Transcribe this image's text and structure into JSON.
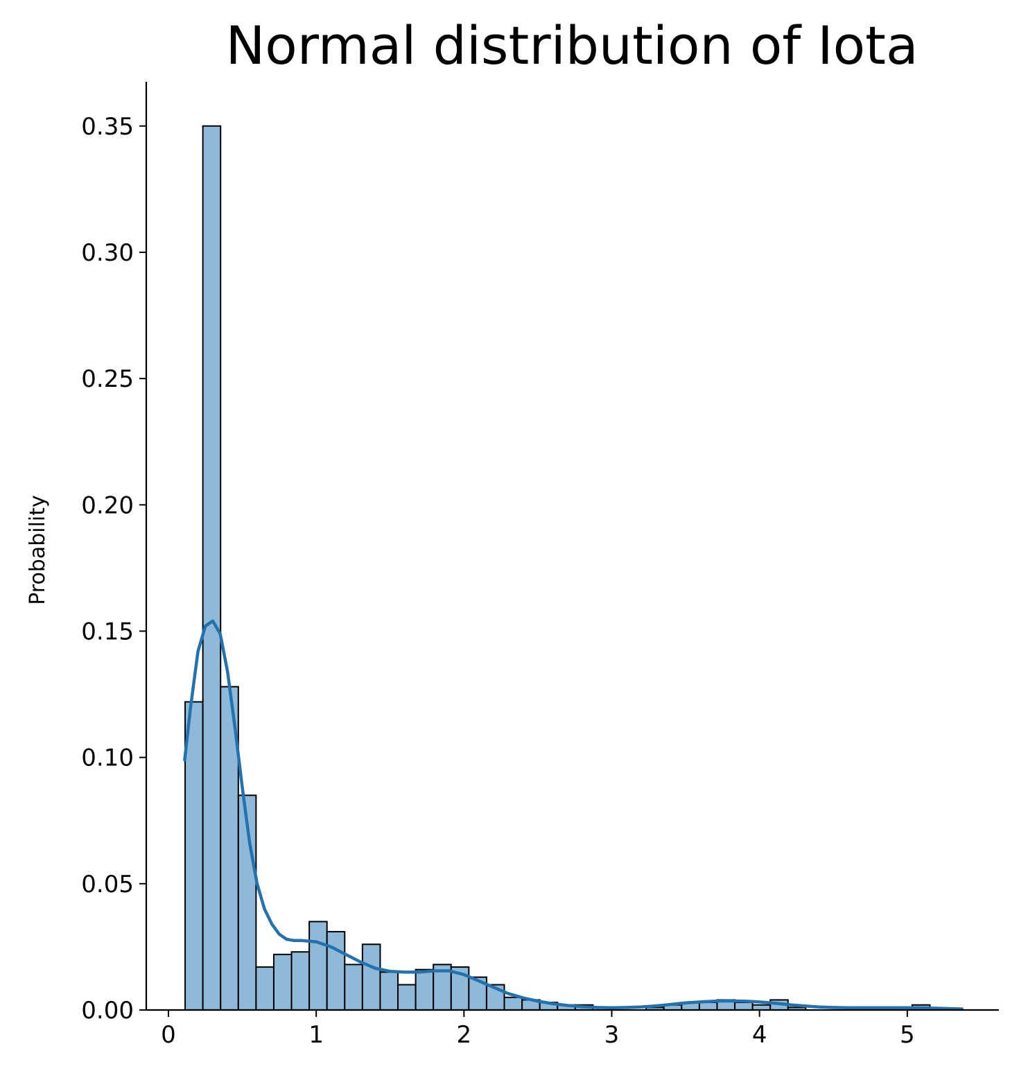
{
  "chart_data": {
    "type": "histogram",
    "title": "Normal distribution of Iota",
    "xlabel": "",
    "ylabel": "Probability",
    "xlim": [
      -0.15,
      5.62
    ],
    "ylim": [
      0,
      0.3675
    ],
    "x_ticks": [
      "0",
      "1",
      "2",
      "3",
      "4",
      "5"
    ],
    "y_ticks": [
      "0.00",
      "0.05",
      "0.10",
      "0.15",
      "0.20",
      "0.25",
      "0.30",
      "0.35"
    ],
    "grid": false,
    "bar_color": "#8fb9d8",
    "bar_edge_color": "#000000",
    "kde_color": "#2372b0",
    "bins": [
      {
        "x0": 0.113,
        "x1": 0.233,
        "value": 0.122
      },
      {
        "x0": 0.233,
        "x1": 0.353,
        "value": 0.35
      },
      {
        "x0": 0.353,
        "x1": 0.473,
        "value": 0.128
      },
      {
        "x0": 0.473,
        "x1": 0.593,
        "value": 0.085
      },
      {
        "x0": 0.593,
        "x1": 0.713,
        "value": 0.017
      },
      {
        "x0": 0.713,
        "x1": 0.833,
        "value": 0.022
      },
      {
        "x0": 0.833,
        "x1": 0.953,
        "value": 0.023
      },
      {
        "x0": 0.953,
        "x1": 1.073,
        "value": 0.035
      },
      {
        "x0": 1.073,
        "x1": 1.193,
        "value": 0.031
      },
      {
        "x0": 1.193,
        "x1": 1.313,
        "value": 0.018
      },
      {
        "x0": 1.313,
        "x1": 1.433,
        "value": 0.026
      },
      {
        "x0": 1.433,
        "x1": 1.553,
        "value": 0.015
      },
      {
        "x0": 1.553,
        "x1": 1.673,
        "value": 0.01
      },
      {
        "x0": 1.673,
        "x1": 1.793,
        "value": 0.016
      },
      {
        "x0": 1.793,
        "x1": 1.913,
        "value": 0.018
      },
      {
        "x0": 1.913,
        "x1": 2.033,
        "value": 0.017
      },
      {
        "x0": 2.033,
        "x1": 2.153,
        "value": 0.013
      },
      {
        "x0": 2.153,
        "x1": 2.273,
        "value": 0.01
      },
      {
        "x0": 2.273,
        "x1": 2.393,
        "value": 0.005
      },
      {
        "x0": 2.393,
        "x1": 2.513,
        "value": 0.004
      },
      {
        "x0": 2.513,
        "x1": 2.633,
        "value": 0.003
      },
      {
        "x0": 2.633,
        "x1": 2.753,
        "value": 0.002
      },
      {
        "x0": 2.753,
        "x1": 2.873,
        "value": 0.002
      },
      {
        "x0": 3.233,
        "x1": 3.353,
        "value": 0.001
      },
      {
        "x0": 3.353,
        "x1": 3.473,
        "value": 0.002
      },
      {
        "x0": 3.473,
        "x1": 3.593,
        "value": 0.003
      },
      {
        "x0": 3.593,
        "x1": 3.713,
        "value": 0.003
      },
      {
        "x0": 3.713,
        "x1": 3.833,
        "value": 0.004
      },
      {
        "x0": 3.833,
        "x1": 3.953,
        "value": 0.003
      },
      {
        "x0": 3.953,
        "x1": 4.073,
        "value": 0.002
      },
      {
        "x0": 4.073,
        "x1": 4.193,
        "value": 0.004
      },
      {
        "x0": 4.193,
        "x1": 4.313,
        "value": 0.001
      },
      {
        "x0": 4.673,
        "x1": 4.793,
        "value": 0.001
      },
      {
        "x0": 5.033,
        "x1": 5.153,
        "value": 0.002
      }
    ],
    "kde": {
      "x": [
        0.11,
        0.15,
        0.2,
        0.25,
        0.3,
        0.35,
        0.4,
        0.45,
        0.5,
        0.55,
        0.6,
        0.65,
        0.7,
        0.75,
        0.8,
        0.85,
        0.9,
        1.0,
        1.1,
        1.2,
        1.3,
        1.4,
        1.5,
        1.6,
        1.7,
        1.8,
        1.9,
        2.0,
        2.1,
        2.2,
        2.3,
        2.4,
        2.5,
        2.6,
        2.7,
        2.8,
        2.9,
        3.0,
        3.1,
        3.2,
        3.3,
        3.4,
        3.5,
        3.6,
        3.7,
        3.8,
        3.9,
        4.0,
        4.1,
        4.2,
        4.3,
        4.4,
        4.5,
        4.6,
        4.7,
        4.8,
        4.9,
        5.0,
        5.1,
        5.2,
        5.3,
        5.37
      ],
      "y": [
        0.099,
        0.12,
        0.142,
        0.152,
        0.154,
        0.149,
        0.134,
        0.112,
        0.088,
        0.066,
        0.05,
        0.04,
        0.034,
        0.03,
        0.028,
        0.0275,
        0.0275,
        0.027,
        0.025,
        0.022,
        0.019,
        0.0165,
        0.0153,
        0.015,
        0.015,
        0.0155,
        0.0155,
        0.014,
        0.0115,
        0.009,
        0.0065,
        0.0048,
        0.0035,
        0.0025,
        0.0018,
        0.0013,
        0.001,
        0.0009,
        0.001,
        0.0012,
        0.0016,
        0.0022,
        0.0028,
        0.0032,
        0.0035,
        0.0036,
        0.0035,
        0.0032,
        0.0027,
        0.0021,
        0.0016,
        0.0012,
        0.001,
        0.0009,
        0.0009,
        0.0009,
        0.0009,
        0.0009,
        0.0008,
        0.0007,
        0.0005,
        0.0004
      ]
    }
  }
}
